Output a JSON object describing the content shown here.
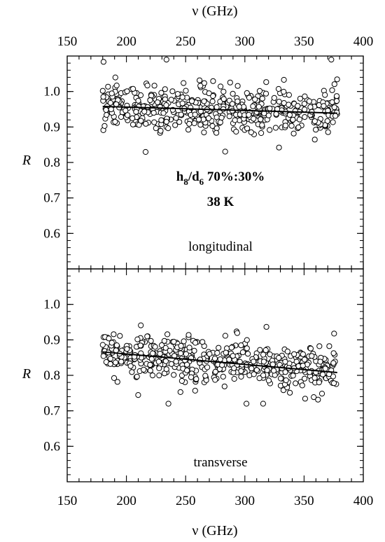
{
  "chart_data": {
    "type": "scatter",
    "x_axis": {
      "label": "ν (GHz)",
      "range": [
        150,
        400
      ],
      "ticks": [
        150,
        200,
        250,
        300,
        350,
        400
      ],
      "labels_top": true,
      "labels_bottom": true
    },
    "panels": [
      {
        "name": "longitudinal",
        "ylabel": "R",
        "ylim": [
          0.5,
          1.1
        ],
        "yticks": [
          0.6,
          0.7,
          0.8,
          0.9,
          1.0
        ],
        "ytick_labels": [
          "0.6",
          "0.7",
          "0.8",
          "0.9",
          "1.0"
        ],
        "annotation": "longitudinal",
        "sample_label_base": "h",
        "sample_label_sub1": "8",
        "sample_label_mid": "/d",
        "sample_label_sub2": "6",
        "sample_label_ratio": " 70%:30%",
        "temperature_label": "38 K",
        "fit_line": {
          "x": [
            180,
            378
          ],
          "y": [
            0.958,
            0.939
          ]
        },
        "scatter_center": {
          "slope": -9.5e-05,
          "intercept": 0.9752
        },
        "scatter_spread": 0.055,
        "x_points_range": [
          180,
          378
        ],
        "n_points": 520
      },
      {
        "name": "transverse",
        "ylabel": "R",
        "ylim": [
          0.5,
          1.1
        ],
        "yticks": [
          0.6,
          0.7,
          0.8,
          0.9,
          1.0
        ],
        "ytick_labels": [
          "0.6",
          "0.7",
          "0.8",
          "0.9",
          "1.0"
        ],
        "annotation": "transverse",
        "fit_line": {
          "x": [
            180,
            378
          ],
          "y": [
            0.866,
            0.808
          ]
        },
        "scatter_center": {
          "slope": -0.00029,
          "intercept": 0.918
        },
        "scatter_spread": 0.05,
        "x_points_range": [
          180,
          378
        ],
        "n_points": 520
      }
    ],
    "marker": "open-circle",
    "colors": {
      "line": "#000000",
      "marker_edge": "#000000",
      "marker_fill": "#ffffff"
    }
  }
}
